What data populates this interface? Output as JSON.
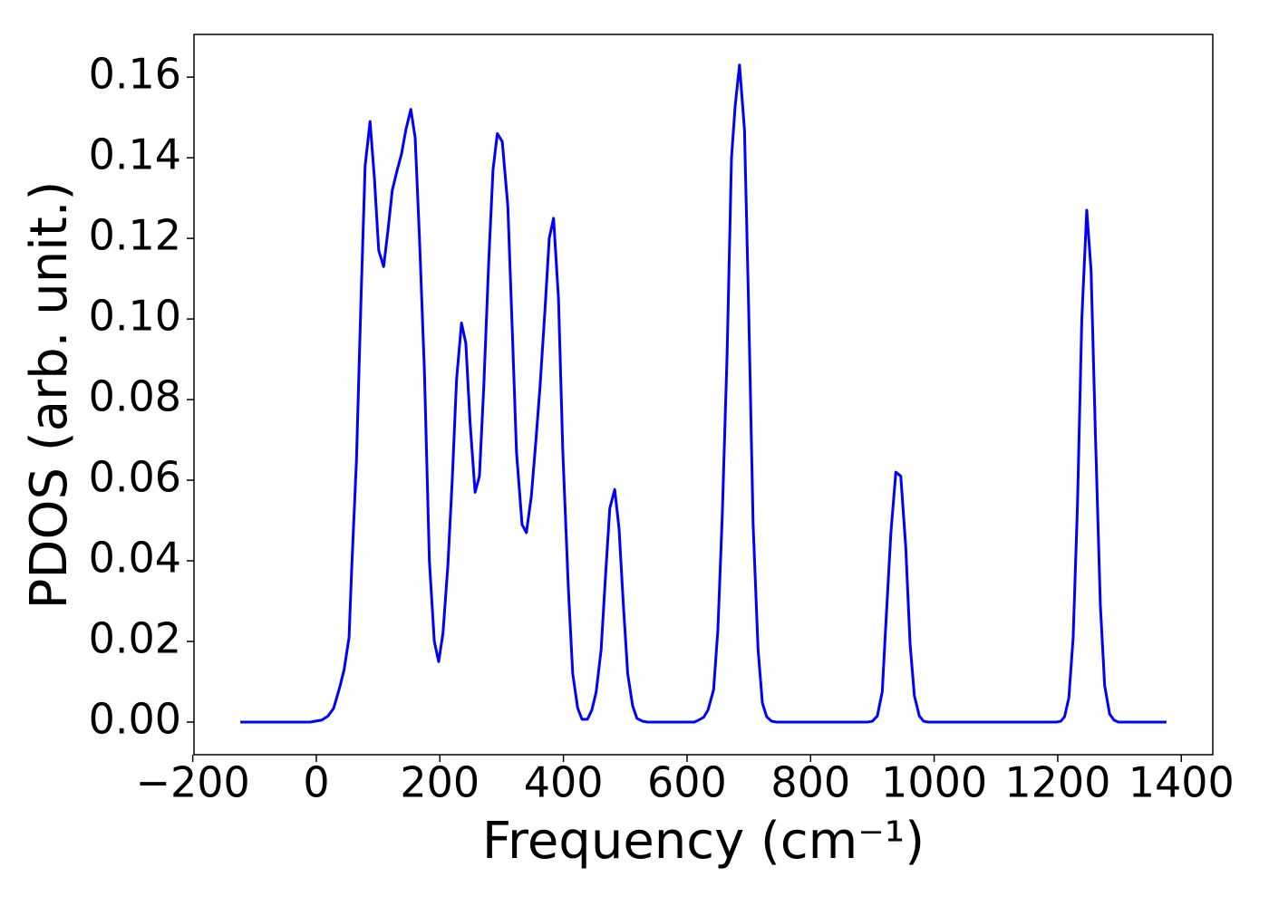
{
  "chart_data": {
    "type": "line",
    "xlabel": "Frequency (cm⁻¹)",
    "ylabel": "PDOS (arb. unit.)",
    "xlim": [
      -198,
      1451
    ],
    "ylim": [
      -0.0081,
      0.1706
    ],
    "xticks": [
      {
        "value": -200,
        "label": "−200"
      },
      0,
      200,
      400,
      600,
      800,
      1000,
      1200,
      1400
    ],
    "yticks": [
      {
        "value": 0,
        "label": "0.00"
      },
      {
        "value": 0.02,
        "label": "0.02"
      },
      {
        "value": 0.04,
        "label": "0.04"
      },
      {
        "value": 0.06,
        "label": "0.06"
      },
      {
        "value": 0.08,
        "label": "0.08"
      },
      {
        "value": 0.1,
        "label": "0.10"
      },
      {
        "value": 0.12,
        "label": "0.12"
      },
      {
        "value": 0.14,
        "label": "0.14"
      },
      {
        "value": 0.16,
        "label": "0.16"
      }
    ],
    "grid": false,
    "series": [
      {
        "color": "#0000ff",
        "x": [
          -123,
          -10,
          9,
          19,
          28,
          38,
          45,
          53,
          57,
          65,
          72,
          79,
          87,
          94,
          101,
          109,
          116,
          123,
          131,
          138,
          145,
          153,
          160,
          167,
          175,
          183,
          191,
          198,
          205,
          213,
          220,
          227,
          235,
          242,
          249,
          257,
          264,
          271,
          279,
          286,
          293,
          301,
          310,
          317,
          324,
          333,
          340,
          348,
          355,
          362,
          370,
          377,
          384,
          392,
          399,
          408,
          415,
          423,
          430,
          439,
          446,
          453,
          461,
          468,
          475,
          483,
          490,
          497,
          504,
          512,
          519,
          528,
          536,
          612,
          619,
          627,
          634,
          643,
          650,
          657,
          665,
          672,
          678,
          685,
          693,
          700,
          707,
          715,
          722,
          729,
          737,
          745,
          892,
          900,
          908,
          916,
          921,
          930,
          938,
          946,
          954,
          961,
          968,
          976,
          983,
          990,
          1198,
          1205,
          1211,
          1218,
          1225,
          1232,
          1239,
          1247,
          1254,
          1261,
          1269,
          1276,
          1284,
          1291,
          1298,
          1376
        ],
        "values": [
          0,
          0,
          0.0005,
          0.0015,
          0.0034,
          0.0087,
          0.013,
          0.021,
          0.037,
          0.065,
          0.103,
          0.138,
          0.149,
          0.135,
          0.117,
          0.113,
          0.122,
          0.132,
          0.137,
          0.141,
          0.147,
          0.152,
          0.145,
          0.12,
          0.087,
          0.04,
          0.02,
          0.015,
          0.022,
          0.039,
          0.06,
          0.085,
          0.099,
          0.094,
          0.074,
          0.057,
          0.061,
          0.083,
          0.114,
          0.137,
          0.146,
          0.144,
          0.128,
          0.098,
          0.067,
          0.049,
          0.047,
          0.056,
          0.069,
          0.083,
          0.102,
          0.12,
          0.125,
          0.105,
          0.067,
          0.033,
          0.012,
          0.0035,
          0.0007,
          0.0007,
          0.003,
          0.0075,
          0.018,
          0.036,
          0.053,
          0.0577,
          0.048,
          0.029,
          0.012,
          0.004,
          0.0009,
          0.0002,
          0,
          0,
          0.0005,
          0.0012,
          0.003,
          0.008,
          0.023,
          0.051,
          0.092,
          0.14,
          0.153,
          0.163,
          0.147,
          0.101,
          0.049,
          0.018,
          0.0047,
          0.0013,
          0.0002,
          0,
          0,
          0.0002,
          0.0015,
          0.0075,
          0.022,
          0.047,
          0.062,
          0.061,
          0.0435,
          0.0195,
          0.0065,
          0.0015,
          0.0002,
          0,
          0,
          0.0002,
          0.0013,
          0.006,
          0.021,
          0.054,
          0.1,
          0.127,
          0.112,
          0.0715,
          0.029,
          0.009,
          0.002,
          0.0005,
          0,
          0
        ]
      }
    ]
  }
}
